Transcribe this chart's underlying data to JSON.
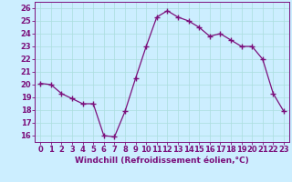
{
  "x": [
    0,
    1,
    2,
    3,
    4,
    5,
    6,
    7,
    8,
    9,
    10,
    11,
    12,
    13,
    14,
    15,
    16,
    17,
    18,
    19,
    20,
    21,
    22,
    23
  ],
  "y": [
    20.1,
    20.0,
    19.3,
    18.9,
    18.5,
    18.5,
    16.0,
    15.9,
    17.9,
    20.5,
    23.0,
    25.3,
    25.8,
    25.3,
    25.0,
    24.5,
    23.8,
    24.0,
    23.5,
    23.0,
    23.0,
    22.0,
    19.3,
    17.9
  ],
  "line_color": "#7b0f7b",
  "marker": "+",
  "marker_size": 4,
  "bg_color": "#cceeff",
  "grid_color": "#aadddd",
  "xlabel": "Windchill (Refroidissement éolien,°C)",
  "xlabel_fontsize": 6.5,
  "tick_fontsize": 6.0,
  "ylim": [
    15.5,
    26.5
  ],
  "xlim": [
    -0.5,
    23.5
  ],
  "yticks": [
    16,
    17,
    18,
    19,
    20,
    21,
    22,
    23,
    24,
    25,
    26
  ],
  "xticks": [
    0,
    1,
    2,
    3,
    4,
    5,
    6,
    7,
    8,
    9,
    10,
    11,
    12,
    13,
    14,
    15,
    16,
    17,
    18,
    19,
    20,
    21,
    22,
    23
  ]
}
